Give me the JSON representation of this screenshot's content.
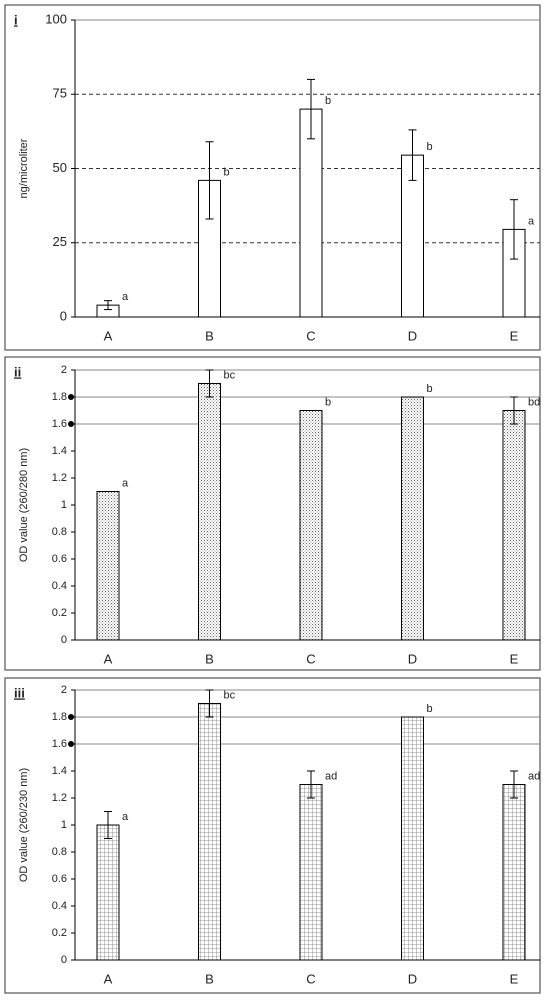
{
  "chart_data": [
    {
      "type": "bar",
      "title": "i",
      "y_label": "ng/microliter",
      "categories": [
        "A",
        "B",
        "C",
        "D",
        "E"
      ],
      "values": [
        4,
        46,
        70,
        54.5,
        29.5
      ],
      "errors": [
        1.5,
        13,
        10,
        8.5,
        10
      ],
      "labels": [
        "a",
        "b",
        "b",
        "b",
        "a"
      ],
      "color": "#ffffff",
      "pattern": "none",
      "ylim": [
        0,
        100
      ],
      "yticks": [
        0,
        25,
        50,
        75,
        100
      ],
      "gridlines": [
        25,
        50,
        75,
        100
      ],
      "grid_style": "dashed"
    },
    {
      "type": "bar",
      "title": "ii",
      "y_label": "OD value (260/280 nm)",
      "categories": [
        "A",
        "B",
        "C",
        "D",
        "E"
      ],
      "values": [
        1.1,
        1.9,
        1.7,
        1.8,
        1.7
      ],
      "errors": [
        null,
        0.1,
        null,
        null,
        0.1
      ],
      "labels": [
        "a",
        "bc",
        "b",
        "b",
        "bd"
      ],
      "color": "#ffffff",
      "pattern": "dots",
      "ylim": [
        0,
        2
      ],
      "yticks": [
        0,
        0.2,
        0.4,
        0.6,
        0.8,
        1,
        1.2,
        1.4,
        1.6,
        1.8,
        2
      ],
      "gridlines": [
        1.6,
        1.8,
        2
      ],
      "grid_style": "solid"
    },
    {
      "type": "bar",
      "title": "iii",
      "y_label": "OD value (260/230 nm)",
      "categories": [
        "A",
        "B",
        "C",
        "D",
        "E"
      ],
      "values": [
        1.0,
        1.9,
        1.3,
        1.8,
        1.3
      ],
      "errors": [
        0.1,
        0.1,
        0.1,
        null,
        0.1
      ],
      "labels": [
        "a",
        "bc",
        "ad",
        "b",
        "ad"
      ],
      "color": "#ffffff",
      "pattern": "grid",
      "ylim": [
        0,
        2
      ],
      "yticks": [
        0,
        0.2,
        0.4,
        0.6,
        0.8,
        1,
        1.2,
        1.4,
        1.6,
        1.8,
        2
      ],
      "gridlines": [
        1.6,
        1.8,
        2
      ],
      "grid_style": "solid"
    }
  ]
}
